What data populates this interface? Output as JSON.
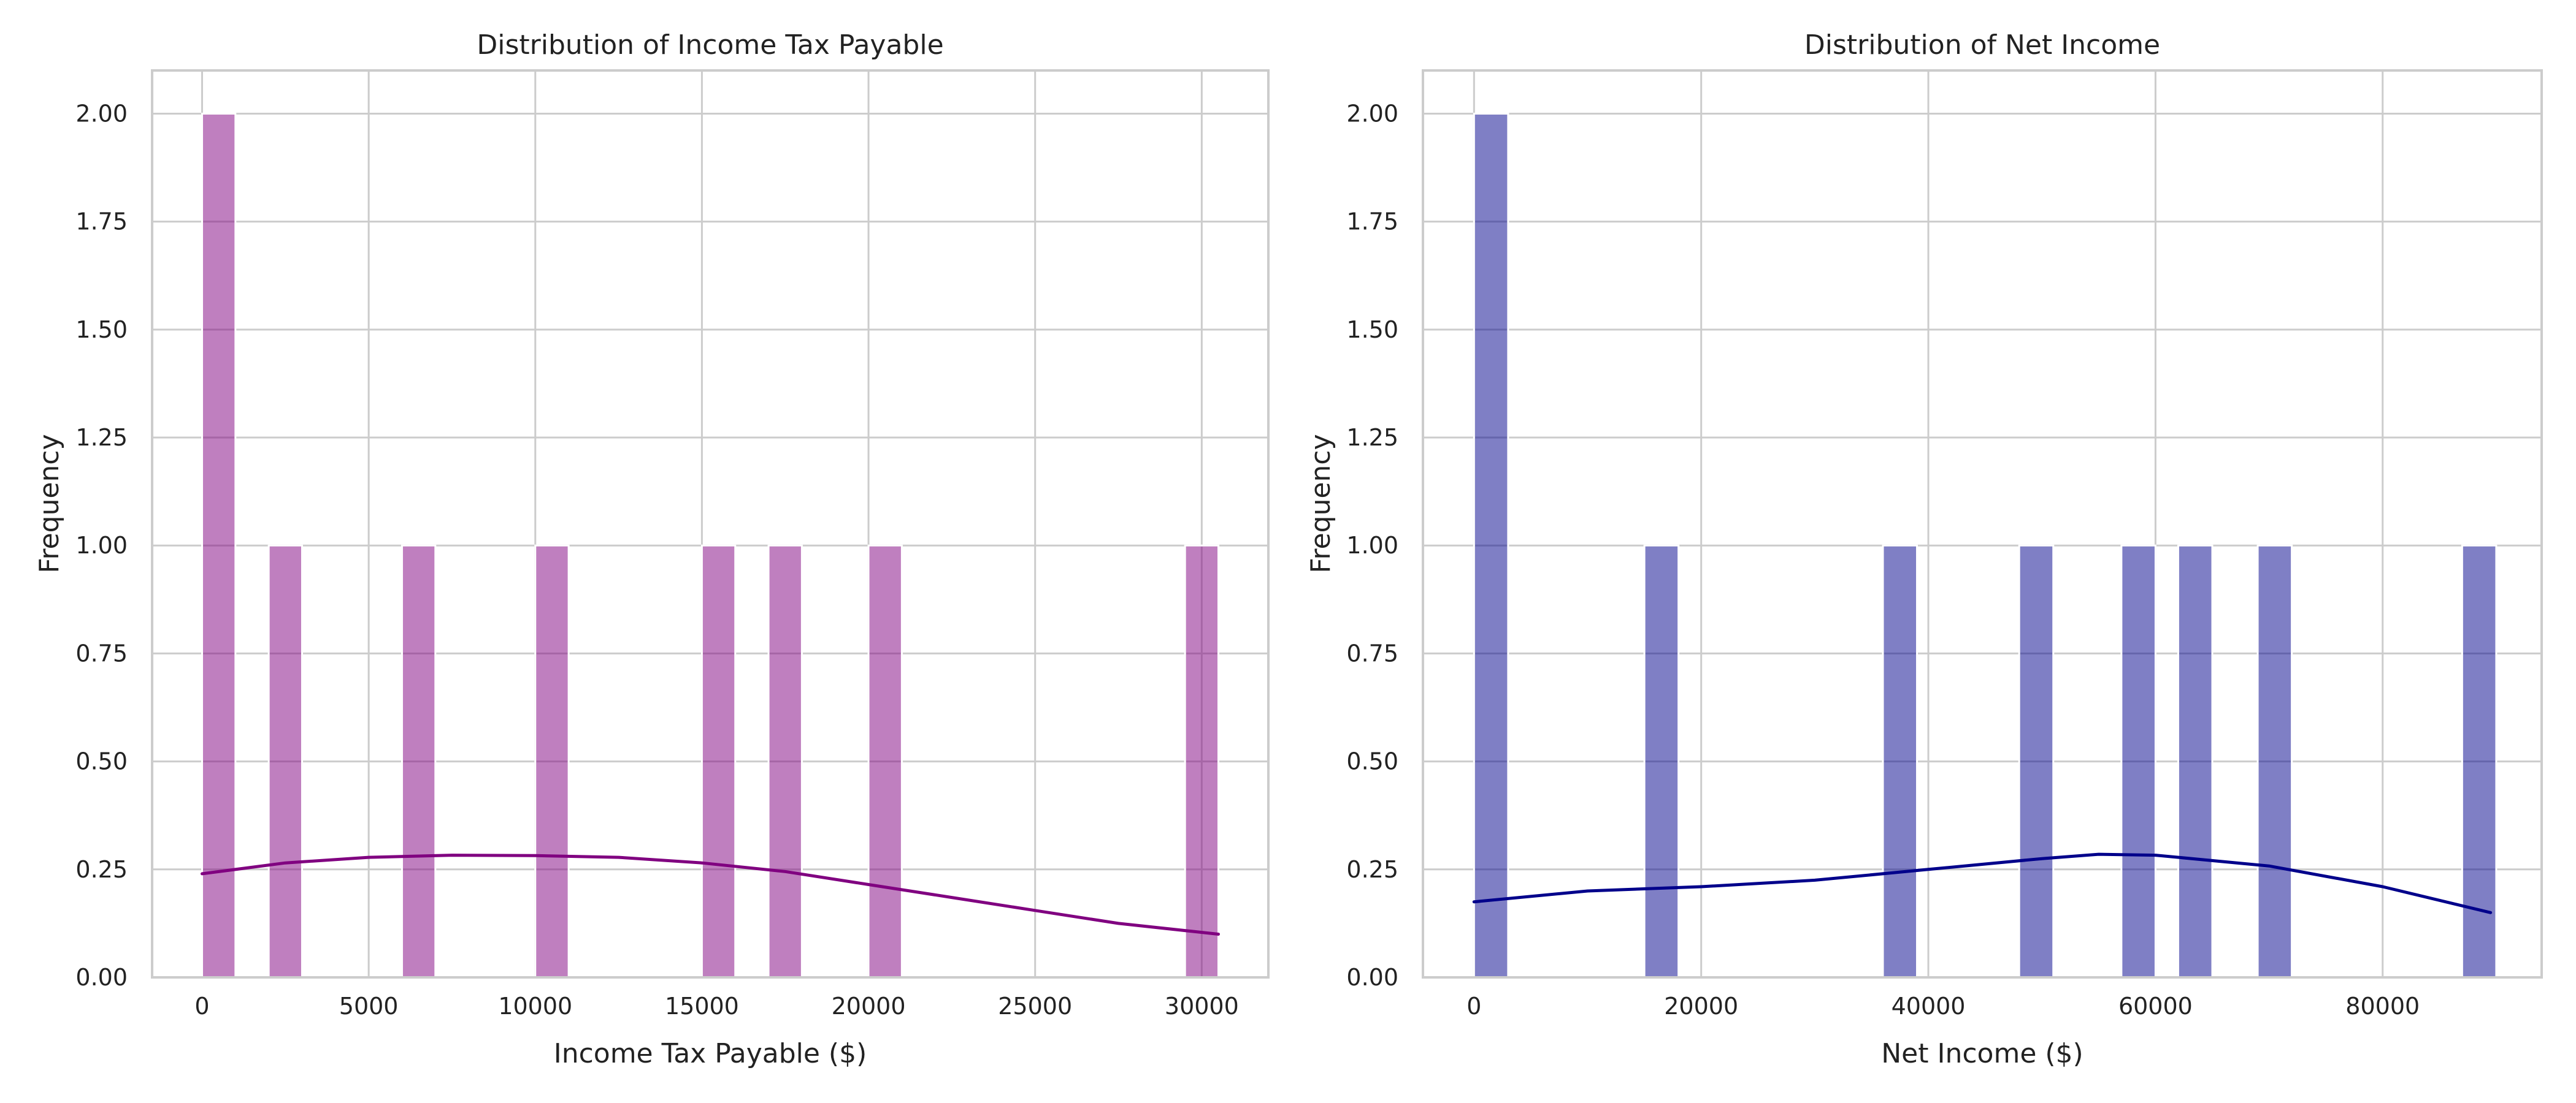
{
  "chart_data": [
    {
      "type": "bar",
      "title": "Distribution of Income Tax Payable",
      "xlabel": "Income Tax Payable ($)",
      "ylabel": "Frequency",
      "xlim": [
        -1500,
        32000
      ],
      "ylim": [
        0,
        2.1
      ],
      "x_ticks": [
        0,
        5000,
        10000,
        15000,
        20000,
        25000,
        30000
      ],
      "y_ticks": [
        "0.00",
        "0.25",
        "0.50",
        "0.75",
        "1.00",
        "1.25",
        "1.50",
        "1.75",
        "2.00"
      ],
      "grid": true,
      "bar_color": "#800080",
      "line_color": "#800080",
      "bin_width": 1000,
      "bars": [
        {
          "x": 0,
          "value": 2
        },
        {
          "x": 2000,
          "value": 1
        },
        {
          "x": 6000,
          "value": 1
        },
        {
          "x": 10000,
          "value": 1
        },
        {
          "x": 15000,
          "value": 1
        },
        {
          "x": 17000,
          "value": 1
        },
        {
          "x": 20000,
          "value": 1
        },
        {
          "x": 29500,
          "value": 1
        }
      ],
      "kde": {
        "x": [
          0,
          2500,
          5000,
          7500,
          10000,
          12500,
          15000,
          17500,
          20000,
          22500,
          25000,
          27500,
          30500
        ],
        "y": [
          0.24,
          0.265,
          0.278,
          0.283,
          0.282,
          0.278,
          0.265,
          0.245,
          0.215,
          0.185,
          0.155,
          0.125,
          0.1
        ]
      }
    },
    {
      "type": "bar",
      "title": "Distribution of Net Income",
      "xlabel": "Net Income ($)",
      "ylabel": "Frequency",
      "xlim": [
        -4500,
        94000
      ],
      "ylim": [
        0,
        2.1
      ],
      "x_ticks": [
        0,
        20000,
        40000,
        60000,
        80000
      ],
      "y_ticks": [
        "0.00",
        "0.25",
        "0.50",
        "0.75",
        "1.00",
        "1.25",
        "1.50",
        "1.75",
        "2.00"
      ],
      "grid": true,
      "bar_color": "#00008B",
      "line_color": "#00008B",
      "bin_width": 3000,
      "bars": [
        {
          "x": 0,
          "value": 2
        },
        {
          "x": 15000,
          "value": 1
        },
        {
          "x": 36000,
          "value": 1
        },
        {
          "x": 48000,
          "value": 1
        },
        {
          "x": 57000,
          "value": 1
        },
        {
          "x": 62000,
          "value": 1
        },
        {
          "x": 69000,
          "value": 1
        },
        {
          "x": 87000,
          "value": 1
        }
      ],
      "kde": {
        "x": [
          0,
          10000,
          20000,
          30000,
          40000,
          50000,
          55000,
          60000,
          70000,
          80000,
          89500
        ],
        "y": [
          0.175,
          0.2,
          0.21,
          0.225,
          0.25,
          0.275,
          0.285,
          0.283,
          0.258,
          0.21,
          0.15
        ]
      }
    }
  ]
}
